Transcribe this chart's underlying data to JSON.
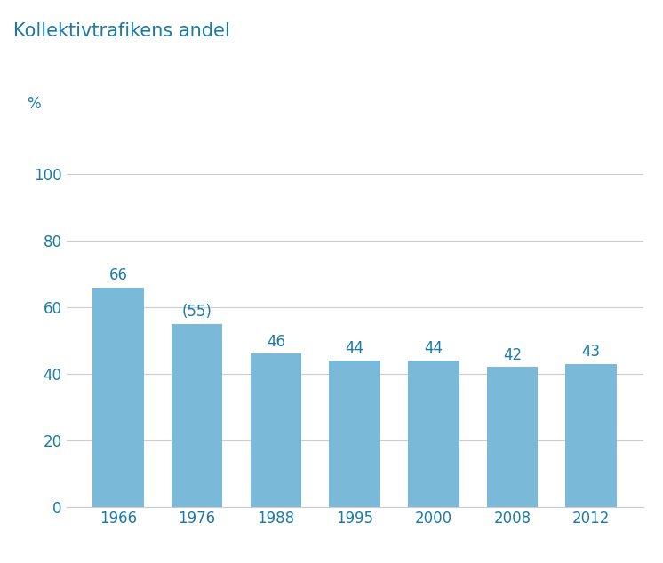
{
  "categories": [
    "1966",
    "1976",
    "1988",
    "1995",
    "2000",
    "2008",
    "2012"
  ],
  "values": [
    66,
    55,
    46,
    44,
    44,
    42,
    43
  ],
  "labels": [
    "66",
    "(55)",
    "46",
    "44",
    "44",
    "42",
    "43"
  ],
  "bar_color": "#7ab9d8",
  "title": "Kollektivtrafikens andel",
  "ylabel": "%",
  "ylim": [
    0,
    105
  ],
  "yticks": [
    0,
    20,
    40,
    60,
    80,
    100
  ],
  "title_color": "#1a7aaa",
  "axis_color": "#1a7aaa",
  "label_color": "#1a7aaa",
  "grid_color": "#cccccc",
  "title_fontsize": 15,
  "label_fontsize": 12,
  "tick_fontsize": 12,
  "ylabel_fontsize": 12,
  "background_color": "#ffffff"
}
